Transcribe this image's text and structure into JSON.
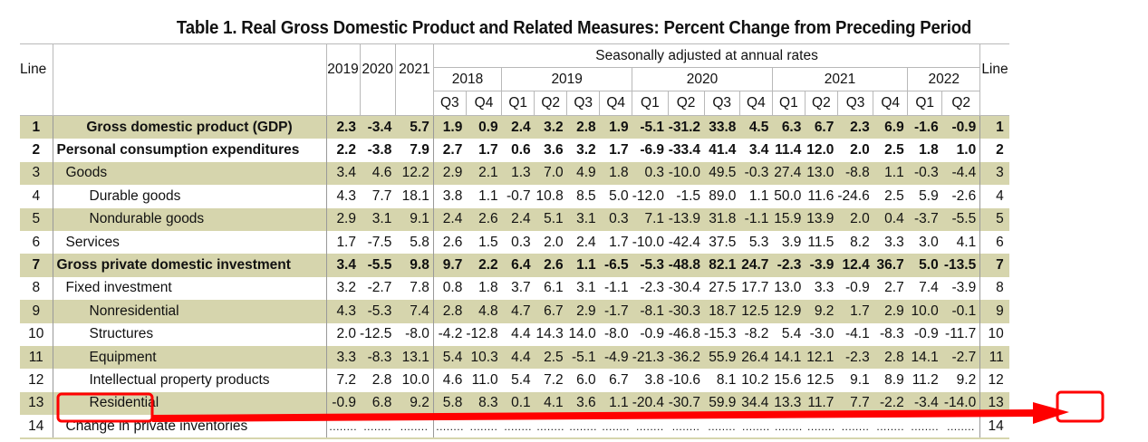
{
  "title": "Table 1. Real Gross Domestic Product and Related Measures: Percent Change from Preceding Period",
  "header": {
    "line_label": "Line",
    "annual_years": [
      "2019",
      "2020",
      "2021"
    ],
    "seasonal_label": "Seasonally adjusted at annual rates",
    "year_groups": [
      {
        "year": "2018",
        "quarters": [
          "Q3",
          "Q4"
        ]
      },
      {
        "year": "2019",
        "quarters": [
          "Q1",
          "Q2",
          "Q3",
          "Q4"
        ]
      },
      {
        "year": "2020",
        "quarters": [
          "Q1",
          "Q2",
          "Q3",
          "Q4"
        ]
      },
      {
        "year": "2021",
        "quarters": [
          "Q1",
          "Q2",
          "Q3",
          "Q4"
        ]
      },
      {
        "year": "2022",
        "quarters": [
          "Q1",
          "Q2"
        ]
      }
    ]
  },
  "rows": [
    {
      "line": "1",
      "label": "Gross domestic product (GDP)",
      "indent": 0,
      "bold": true,
      "center": true,
      "shaded": true,
      "values": [
        "2.3",
        "-3.4",
        "5.7",
        "1.9",
        "0.9",
        "2.4",
        "3.2",
        "2.8",
        "1.9",
        "-5.1",
        "-31.2",
        "33.8",
        "4.5",
        "6.3",
        "6.7",
        "2.3",
        "6.9",
        "-1.6",
        "-0.9"
      ]
    },
    {
      "line": "2",
      "label": "Personal consumption expenditures",
      "indent": 0,
      "bold": true,
      "shaded": false,
      "values": [
        "2.2",
        "-3.8",
        "7.9",
        "2.7",
        "1.7",
        "0.6",
        "3.6",
        "3.2",
        "1.7",
        "-6.9",
        "-33.4",
        "41.4",
        "3.4",
        "11.4",
        "12.0",
        "2.0",
        "2.5",
        "1.8",
        "1.0"
      ]
    },
    {
      "line": "3",
      "label": "Goods",
      "indent": 1,
      "bold": false,
      "shaded": true,
      "values": [
        "3.4",
        "4.6",
        "12.2",
        "2.9",
        "2.1",
        "1.3",
        "7.0",
        "4.9",
        "1.8",
        "0.3",
        "-10.0",
        "49.5",
        "-0.3",
        "27.4",
        "13.0",
        "-8.8",
        "1.1",
        "-0.3",
        "-4.4"
      ]
    },
    {
      "line": "4",
      "label": "Durable goods",
      "indent": 2,
      "bold": false,
      "shaded": false,
      "values": [
        "4.3",
        "7.7",
        "18.1",
        "3.8",
        "1.1",
        "-0.7",
        "10.8",
        "8.5",
        "5.0",
        "-12.0",
        "-1.5",
        "89.0",
        "1.1",
        "50.0",
        "11.6",
        "-24.6",
        "2.5",
        "5.9",
        "-2.6"
      ]
    },
    {
      "line": "5",
      "label": "Nondurable goods",
      "indent": 2,
      "bold": false,
      "shaded": true,
      "values": [
        "2.9",
        "3.1",
        "9.1",
        "2.4",
        "2.6",
        "2.4",
        "5.1",
        "3.1",
        "0.3",
        "7.1",
        "-13.9",
        "31.8",
        "-1.1",
        "15.9",
        "13.9",
        "2.0",
        "0.4",
        "-3.7",
        "-5.5"
      ]
    },
    {
      "line": "6",
      "label": "Services",
      "indent": 1,
      "bold": false,
      "shaded": false,
      "values": [
        "1.7",
        "-7.5",
        "5.8",
        "2.6",
        "1.5",
        "0.3",
        "2.0",
        "2.4",
        "1.7",
        "-10.0",
        "-42.4",
        "37.5",
        "5.3",
        "3.9",
        "11.5",
        "8.2",
        "3.3",
        "3.0",
        "4.1"
      ]
    },
    {
      "line": "7",
      "label": "Gross private domestic investment",
      "indent": 0,
      "bold": true,
      "shaded": true,
      "values": [
        "3.4",
        "-5.5",
        "9.8",
        "9.7",
        "2.2",
        "6.4",
        "2.6",
        "1.1",
        "-6.5",
        "-5.3",
        "-48.8",
        "82.1",
        "24.7",
        "-2.3",
        "-3.9",
        "12.4",
        "36.7",
        "5.0",
        "-13.5"
      ]
    },
    {
      "line": "8",
      "label": "Fixed investment",
      "indent": 1,
      "bold": false,
      "shaded": false,
      "values": [
        "3.2",
        "-2.7",
        "7.8",
        "0.8",
        "1.8",
        "3.7",
        "6.1",
        "3.1",
        "-1.1",
        "-2.3",
        "-30.4",
        "27.5",
        "17.7",
        "13.0",
        "3.3",
        "-0.9",
        "2.7",
        "7.4",
        "-3.9"
      ]
    },
    {
      "line": "9",
      "label": "Nonresidential",
      "indent": 2,
      "bold": false,
      "shaded": true,
      "values": [
        "4.3",
        "-5.3",
        "7.4",
        "2.8",
        "4.8",
        "4.7",
        "6.7",
        "2.9",
        "-1.7",
        "-8.1",
        "-30.3",
        "18.7",
        "12.5",
        "12.9",
        "9.2",
        "1.7",
        "2.9",
        "10.0",
        "-0.1"
      ]
    },
    {
      "line": "10",
      "label": "Structures",
      "indent": 3,
      "bold": false,
      "shaded": false,
      "values": [
        "2.0",
        "-12.5",
        "-8.0",
        "-4.2",
        "-12.8",
        "4.4",
        "14.3",
        "14.0",
        "-8.0",
        "-0.9",
        "-46.8",
        "-15.3",
        "-8.2",
        "5.4",
        "-3.0",
        "-4.1",
        "-8.3",
        "-0.9",
        "-11.7"
      ]
    },
    {
      "line": "11",
      "label": "Equipment",
      "indent": 3,
      "bold": false,
      "shaded": true,
      "values": [
        "3.3",
        "-8.3",
        "13.1",
        "5.4",
        "10.3",
        "4.4",
        "2.5",
        "-5.1",
        "-4.9",
        "-21.3",
        "-36.2",
        "55.9",
        "26.4",
        "14.1",
        "12.1",
        "-2.3",
        "2.8",
        "14.1",
        "-2.7"
      ]
    },
    {
      "line": "12",
      "label": "Intellectual property products",
      "indent": 3,
      "bold": false,
      "shaded": false,
      "values": [
        "7.2",
        "2.8",
        "10.0",
        "4.6",
        "11.0",
        "5.4",
        "7.2",
        "6.0",
        "6.7",
        "3.8",
        "-10.6",
        "8.1",
        "10.2",
        "15.6",
        "12.5",
        "9.1",
        "8.9",
        "11.2",
        "9.2"
      ]
    },
    {
      "line": "13",
      "label": "Residential",
      "indent": 2,
      "bold": false,
      "shaded": true,
      "highlighted": true,
      "values": [
        "-0.9",
        "6.8",
        "9.2",
        "5.8",
        "8.3",
        "0.1",
        "4.1",
        "3.6",
        "1.1",
        "-20.4",
        "-30.7",
        "59.9",
        "34.4",
        "13.3",
        "11.7",
        "7.7",
        "-2.2",
        "-3.4",
        "-14.0"
      ]
    },
    {
      "line": "14",
      "label": "Change in private inventories",
      "indent": 1,
      "bold": false,
      "shaded": false,
      "values": [
        "........",
        "........",
        "........",
        "........",
        "........",
        "........",
        "........",
        "........",
        "........",
        "........",
        "........",
        "........",
        "........",
        "........",
        "........",
        "........",
        "........",
        "........",
        "........"
      ]
    }
  ],
  "annotation": {
    "color": "#ff0000",
    "from": "Residential label (line 13)",
    "to": "2022 Q2 value for line 13",
    "highlighted_value": "-14.0"
  }
}
